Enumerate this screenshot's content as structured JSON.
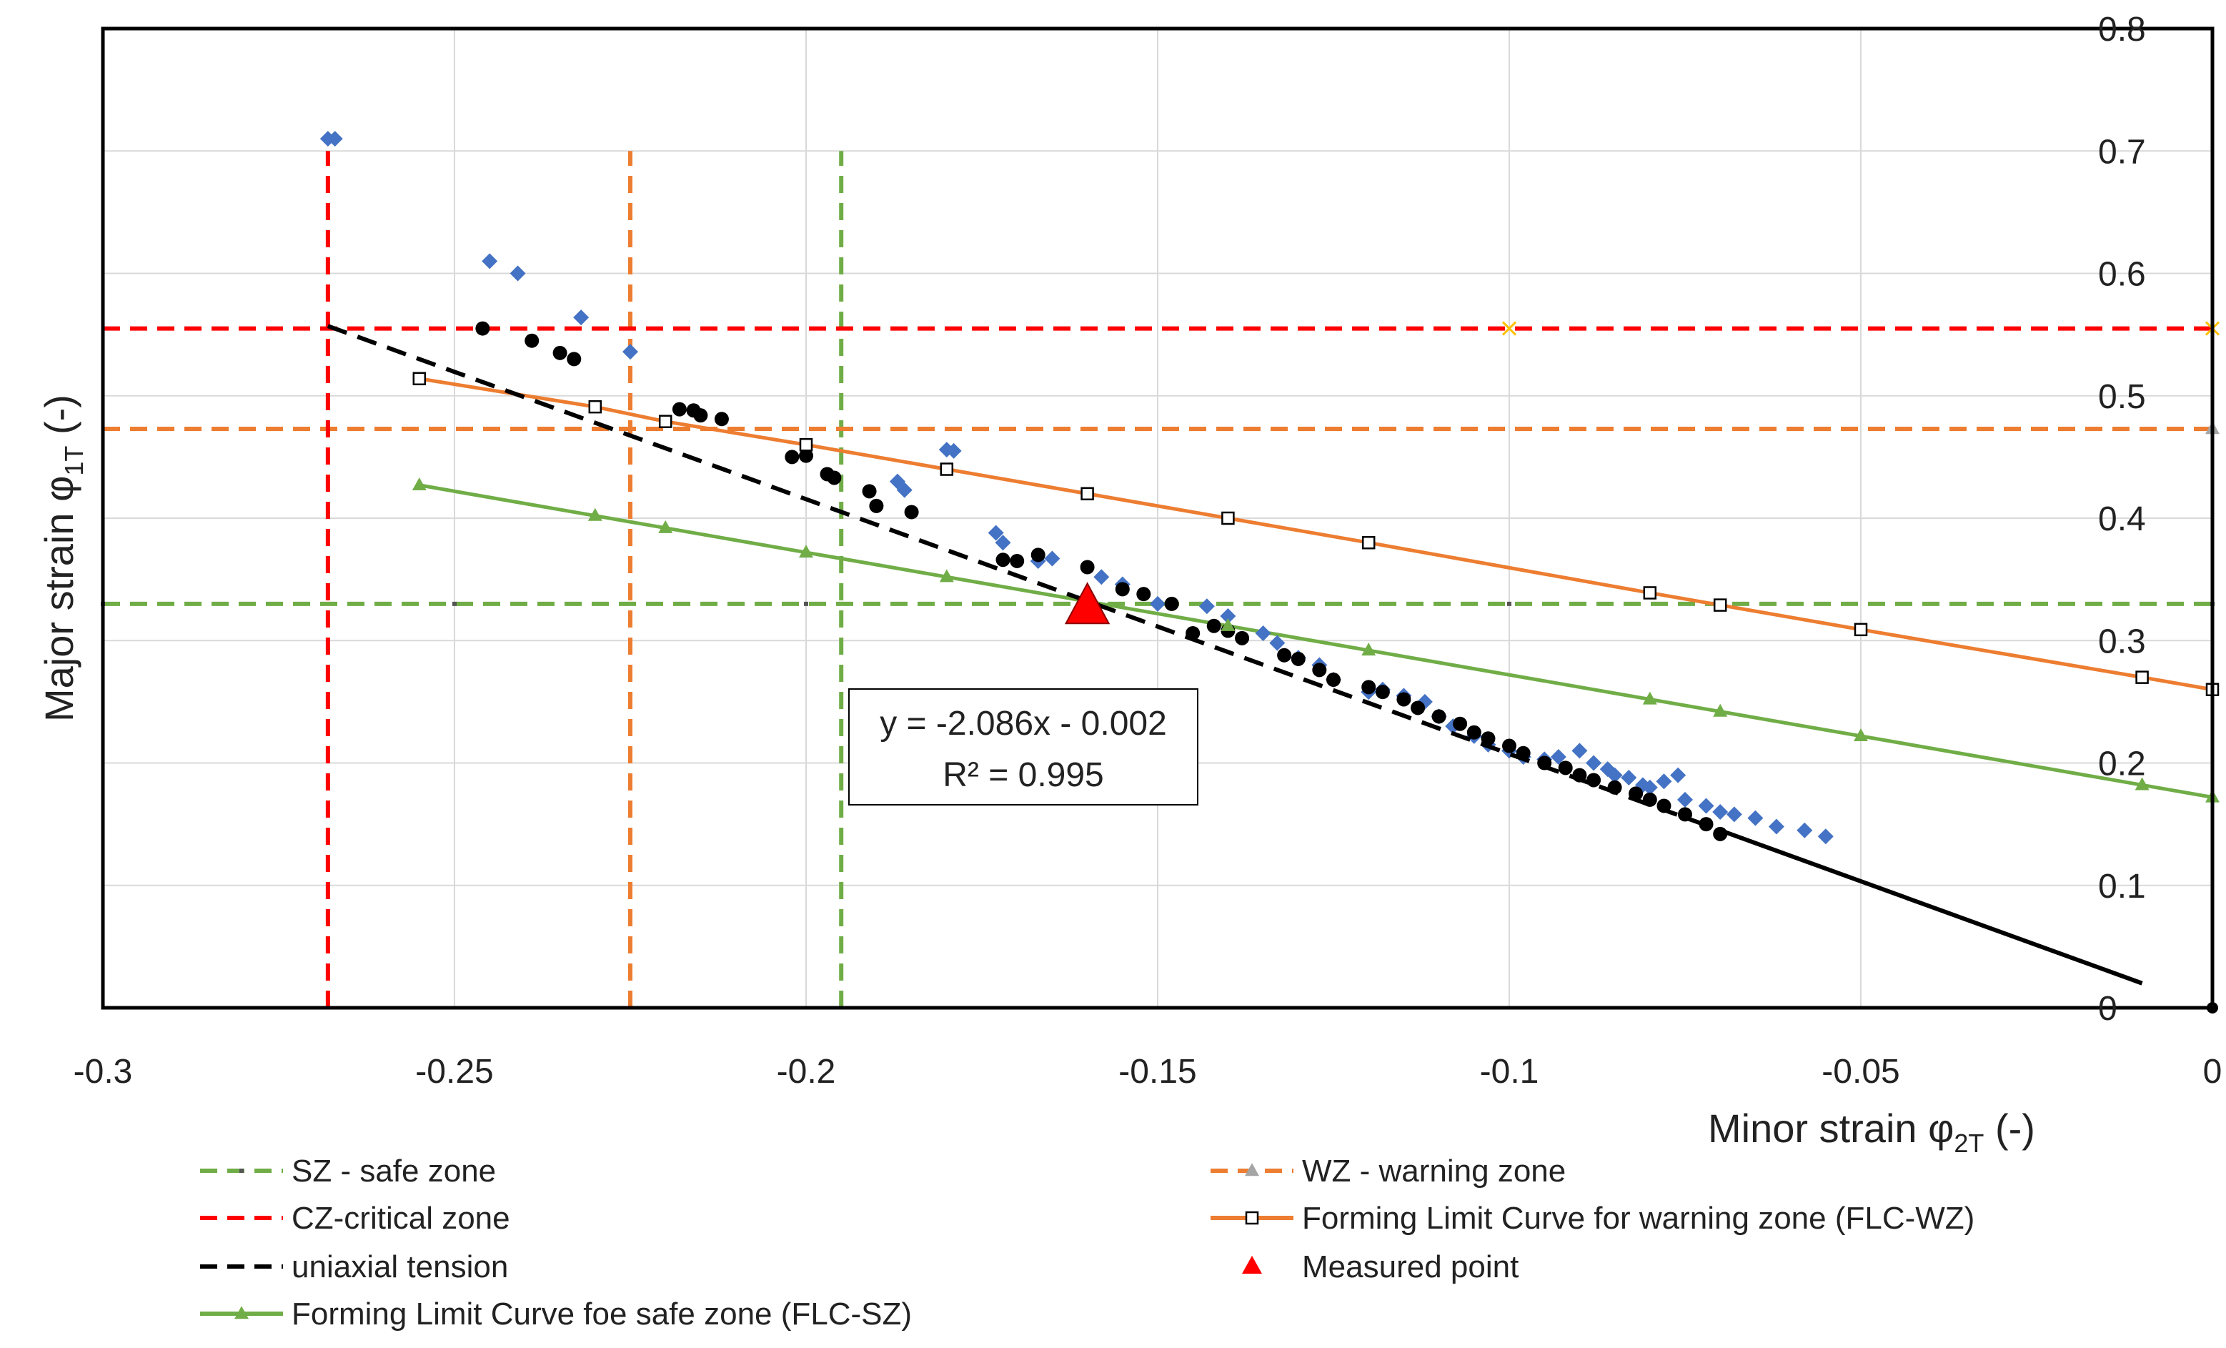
{
  "colors": {
    "safe": "#70AD47",
    "warning": "#ED7D31",
    "critical": "#FF0000",
    "uniaxial": "#000000",
    "measured_cloud": "#4472C4",
    "grid": "#D9D9D9",
    "frame": "#000000"
  },
  "chart_data": {
    "type": "scatter",
    "xlabel": "Minor strain φ",
    "xlabel_sub": "2T",
    "xlabel_unit": " (-)",
    "ylabel": "Major strain φ",
    "ylabel_sub": "1T",
    "ylabel_unit": " (-)",
    "xlim": [
      -0.3,
      0
    ],
    "ylim": [
      0,
      0.8
    ],
    "x_ticks": [
      -0.3,
      -0.25,
      -0.2,
      -0.15,
      -0.1,
      -0.05,
      0
    ],
    "x_tick_labels": [
      "-0.3",
      "-0.25",
      "-0.2",
      "-0.15",
      "-0.1",
      "-0.05",
      "0"
    ],
    "y_ticks": [
      0,
      0.1,
      0.2,
      0.3,
      0.4,
      0.5,
      0.6,
      0.7,
      0.8
    ],
    "y_tick_labels": [
      "0",
      "0.1",
      "0.2",
      "0.3",
      "0.4",
      "0.5",
      "0.6",
      "0.7",
      "0.8"
    ],
    "y_axis_position": "right",
    "grid": true,
    "annotation": {
      "line1": "y = -2.086x - 0.002",
      "line2": "R² = 0.995"
    },
    "series": [
      {
        "key": "sz_h",
        "name": "SZ - safe zone",
        "style": "dashed",
        "color": "#70AD47",
        "x": [
          -0.3,
          -0.25,
          -0.2,
          -0.1,
          0
        ],
        "y": [
          0.33,
          0.33,
          0.33,
          0.33,
          0.33
        ]
      },
      {
        "key": "sz_v",
        "style": "dashed",
        "color": "#70AD47",
        "x": [
          -0.195,
          -0.195
        ],
        "y": [
          0,
          0.7
        ]
      },
      {
        "key": "wz_h",
        "name": "WZ - warning zone",
        "style": "dashed",
        "color": "#ED7D31",
        "x": [
          -0.3,
          -0.1,
          0
        ],
        "y": [
          0.473,
          0.473,
          0.473
        ]
      },
      {
        "key": "wz_v",
        "style": "dashed",
        "color": "#ED7D31",
        "x": [
          -0.225,
          -0.225
        ],
        "y": [
          0,
          0.7
        ]
      },
      {
        "key": "cz_h",
        "name": "CZ-critical zone",
        "style": "dashed",
        "color": "#FF0000",
        "x": [
          -0.3,
          -0.1,
          0
        ],
        "y": [
          0.555,
          0.555,
          0.555
        ]
      },
      {
        "key": "cz_v",
        "style": "dashed",
        "color": "#FF0000",
        "x": [
          -0.268,
          -0.268
        ],
        "y": [
          0,
          0.7
        ]
      },
      {
        "key": "flc_wz",
        "name": "Forming Limit Curve for warning zone (FLC-WZ)",
        "color": "#ED7D31",
        "x": [
          -0.255,
          -0.23,
          -0.22,
          -0.2,
          -0.18,
          -0.16,
          -0.14,
          -0.12,
          -0.08,
          -0.07,
          -0.05,
          -0.01,
          0
        ],
        "y": [
          0.514,
          0.491,
          0.479,
          0.46,
          0.44,
          0.42,
          0.4,
          0.38,
          0.339,
          0.329,
          0.309,
          0.27,
          0.26
        ]
      },
      {
        "key": "flc_sz",
        "name": "Forming Limit Curve foe safe zone (FLC-SZ)",
        "color": "#70AD47",
        "x": [
          -0.255,
          -0.23,
          -0.22,
          -0.2,
          -0.18,
          -0.14,
          -0.12,
          -0.08,
          -0.07,
          -0.05,
          -0.01,
          0
        ],
        "y": [
          0.427,
          0.402,
          0.392,
          0.372,
          0.352,
          0.312,
          0.292,
          0.252,
          0.242,
          0.222,
          0.182,
          0.172
        ]
      },
      {
        "key": "uniaxial",
        "name": "uniaxial tension",
        "style": "dashed",
        "color": "#000000",
        "x": [
          -0.268,
          -0.07
        ],
        "y": [
          0.557,
          0.145
        ]
      },
      {
        "key": "trend",
        "color": "#000000",
        "x": [
          -0.07,
          -0.01
        ],
        "y": [
          0.145,
          0.02
        ]
      },
      {
        "key": "measured",
        "name": "Measured point",
        "color": "#FF0000",
        "x": [
          -0.16
        ],
        "y": [
          0.328
        ]
      },
      {
        "key": "cloud_blue",
        "color": "#4472C4",
        "x": [
          -0.268,
          -0.267,
          -0.245,
          -0.241,
          -0.232,
          -0.225,
          -0.187,
          -0.186,
          -0.18,
          -0.179,
          -0.173,
          -0.172,
          -0.167,
          -0.165,
          -0.158,
          -0.155,
          -0.15,
          -0.143,
          -0.14,
          -0.135,
          -0.133,
          -0.13,
          -0.127,
          -0.125,
          -0.12,
          -0.118,
          -0.115,
          -0.112,
          -0.11,
          -0.108,
          -0.105,
          -0.103,
          -0.1,
          -0.098,
          -0.095,
          -0.093,
          -0.09,
          -0.088,
          -0.086,
          -0.085,
          -0.083,
          -0.081,
          -0.08,
          -0.078,
          -0.076,
          -0.075,
          -0.072,
          -0.07,
          -0.068,
          -0.065,
          -0.062,
          -0.058,
          -0.055
        ],
        "y": [
          0.71,
          0.71,
          0.61,
          0.6,
          0.564,
          0.536,
          0.43,
          0.423,
          0.456,
          0.455,
          0.388,
          0.38,
          0.365,
          0.367,
          0.352,
          0.346,
          0.33,
          0.328,
          0.32,
          0.306,
          0.298,
          0.286,
          0.28,
          0.268,
          0.258,
          0.26,
          0.255,
          0.25,
          0.238,
          0.23,
          0.222,
          0.215,
          0.21,
          0.205,
          0.203,
          0.205,
          0.21,
          0.2,
          0.195,
          0.19,
          0.188,
          0.182,
          0.18,
          0.185,
          0.19,
          0.17,
          0.165,
          0.16,
          0.158,
          0.155,
          0.148,
          0.145,
          0.14
        ]
      },
      {
        "key": "cloud_black",
        "color": "#000000",
        "x": [
          -0.246,
          -0.239,
          -0.235,
          -0.233,
          -0.218,
          -0.216,
          -0.215,
          -0.212,
          -0.202,
          -0.2,
          -0.197,
          -0.196,
          -0.191,
          -0.19,
          -0.185,
          -0.172,
          -0.17,
          -0.167,
          -0.16,
          -0.155,
          -0.152,
          -0.148,
          -0.145,
          -0.142,
          -0.14,
          -0.138,
          -0.132,
          -0.13,
          -0.127,
          -0.125,
          -0.12,
          -0.118,
          -0.115,
          -0.113,
          -0.11,
          -0.107,
          -0.105,
          -0.103,
          -0.1,
          -0.098,
          -0.095,
          -0.092,
          -0.09,
          -0.088,
          -0.085,
          -0.082,
          -0.08,
          -0.078,
          -0.075,
          -0.072,
          -0.07
        ],
        "y": [
          0.555,
          0.545,
          0.535,
          0.53,
          0.489,
          0.488,
          0.484,
          0.481,
          0.45,
          0.451,
          0.436,
          0.433,
          0.422,
          0.41,
          0.405,
          0.366,
          0.365,
          0.37,
          0.36,
          0.342,
          0.338,
          0.33,
          0.306,
          0.312,
          0.308,
          0.302,
          0.288,
          0.285,
          0.276,
          0.268,
          0.262,
          0.258,
          0.252,
          0.245,
          0.238,
          0.232,
          0.225,
          0.22,
          0.214,
          0.208,
          0.2,
          0.196,
          0.19,
          0.186,
          0.18,
          0.175,
          0.17,
          0.165,
          0.158,
          0.15,
          0.142
        ]
      }
    ],
    "legend": {
      "placement": "bottom",
      "items": [
        {
          "key": "sz_h",
          "label": "SZ - safe zone"
        },
        {
          "key": "wz_h",
          "label": "WZ - warning zone"
        },
        {
          "key": "cz_h",
          "label": "CZ-critical zone"
        },
        {
          "key": "flc_wz",
          "label": "Forming Limit Curve for warning zone (FLC-WZ)"
        },
        {
          "key": "uniaxial",
          "label": "uniaxial tension"
        },
        {
          "key": "measured",
          "label": "Measured point"
        },
        {
          "key": "flc_sz",
          "label": "Forming Limit Curve foe safe zone (FLC-SZ)"
        }
      ]
    }
  }
}
